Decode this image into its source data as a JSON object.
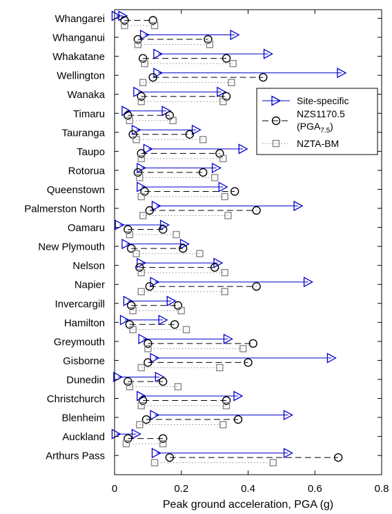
{
  "chart_data": {
    "type": "dumbbell",
    "xlabel": "Peak ground acceleration, PGA (g)",
    "xlim": [
      0,
      0.8
    ],
    "xticks": [
      "0",
      "0.2",
      "0.4",
      "0.6",
      "0.8"
    ],
    "grid": false,
    "legend_position": "right",
    "categories": [
      "Whangarei",
      "Whanganui",
      "Whakatane",
      "Wellington",
      "Wanaka",
      "Timaru",
      "Tauranga",
      "Taupo",
      "Rotorua",
      "Queenstown",
      "Palmerston North",
      "Oamaru",
      "New Plymouth",
      "Nelson",
      "Napier",
      "Invercargill",
      "Hamilton",
      "Greymouth",
      "Gisborne",
      "Dunedin",
      "Christchurch",
      "Blenheim",
      "Auckland",
      "Arthurs Pass"
    ],
    "series": [
      {
        "name": "Site-specific",
        "style": "triangle-right-solid",
        "color": "#0000cc",
        "min_values": [
          0.005,
          0.09,
          0.13,
          0.13,
          0.07,
          0.035,
          0.065,
          0.1,
          0.08,
          0.08,
          0.125,
          0.015,
          0.035,
          0.08,
          0.12,
          0.04,
          0.03,
          0.085,
          0.12,
          0.01,
          0.08,
          0.12,
          0.005,
          0.125
        ],
        "max_values": [
          0.025,
          0.36,
          0.46,
          0.68,
          0.32,
          0.155,
          0.245,
          0.385,
          0.305,
          0.325,
          0.55,
          0.15,
          0.21,
          0.31,
          0.58,
          0.17,
          0.145,
          0.34,
          0.65,
          0.135,
          0.37,
          0.52,
          0.065,
          0.52
        ]
      },
      {
        "name": "NZS1170.5",
        "name_line2": "(PGA",
        "name_sub": "7.5",
        "name_close": ")",
        "style": "circle-dashed",
        "color": "#000000",
        "min_values": [
          0.03,
          0.07,
          0.085,
          0.115,
          0.08,
          0.04,
          0.055,
          0.08,
          0.07,
          0.09,
          0.105,
          0.04,
          0.05,
          0.075,
          0.105,
          0.05,
          0.045,
          0.1,
          0.1,
          0.04,
          0.085,
          0.095,
          0.04,
          0.165
        ],
        "max_values": [
          0.115,
          0.28,
          0.335,
          0.445,
          0.335,
          0.165,
          0.225,
          0.315,
          0.265,
          0.36,
          0.425,
          0.145,
          0.205,
          0.3,
          0.425,
          0.19,
          0.18,
          0.415,
          0.4,
          0.145,
          0.335,
          0.37,
          0.145,
          0.67
        ]
      },
      {
        "name": "NZTA-BM",
        "style": "square-dotted",
        "color": "#888888",
        "min_values": [
          0.03,
          0.07,
          0.09,
          0.085,
          0.08,
          0.045,
          0.065,
          0.08,
          0.075,
          0.08,
          0.085,
          0.045,
          0.065,
          0.08,
          0.08,
          0.055,
          0.055,
          0.1,
          0.08,
          0.045,
          0.08,
          0.075,
          0.035,
          0.12
        ],
        "max_values": [
          0.12,
          0.285,
          0.355,
          0.35,
          0.325,
          0.175,
          0.265,
          0.325,
          0.3,
          0.33,
          0.34,
          0.185,
          0.255,
          0.33,
          0.33,
          0.2,
          0.215,
          0.385,
          0.315,
          0.19,
          0.335,
          0.325,
          0.145,
          0.475
        ]
      }
    ]
  }
}
